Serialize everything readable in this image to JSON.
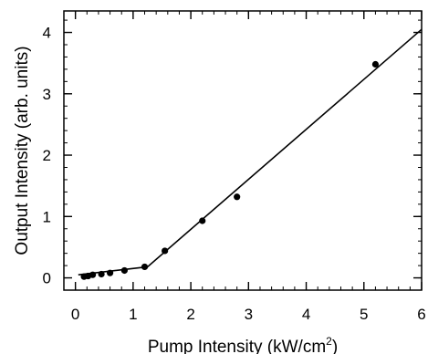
{
  "chart_data": {
    "type": "scatter",
    "title": "",
    "xlabel": "Pump Intensity (kW/cm",
    "xlabel_superscript": "2",
    "xlabel_suffix": ")",
    "ylabel": "Output Intensity (arb. units)",
    "xlim": [
      -0.2,
      6.0
    ],
    "ylim": [
      -0.2,
      4.35
    ],
    "xticks": [
      0,
      1,
      2,
      3,
      4,
      5,
      6
    ],
    "yticks": [
      0,
      1,
      2,
      3,
      4
    ],
    "xminor_step": 0.2,
    "yminor_step": 0.2,
    "grid": false,
    "legend": "none",
    "colors": {
      "points": "#000000",
      "line": "#000000",
      "axes": "#000000"
    },
    "series": [
      {
        "kind": "points",
        "x": [
          0.15,
          0.22,
          0.3,
          0.45,
          0.6,
          0.85,
          1.2,
          1.55,
          2.2,
          2.8,
          5.2
        ],
        "y": [
          0.02,
          0.03,
          0.05,
          0.06,
          0.08,
          0.12,
          0.18,
          0.44,
          0.93,
          1.32,
          3.48
        ]
      },
      {
        "kind": "fit-line",
        "x": [
          0.05,
          1.25,
          6.0
        ],
        "y": [
          0.05,
          0.18,
          4.05
        ]
      }
    ]
  }
}
